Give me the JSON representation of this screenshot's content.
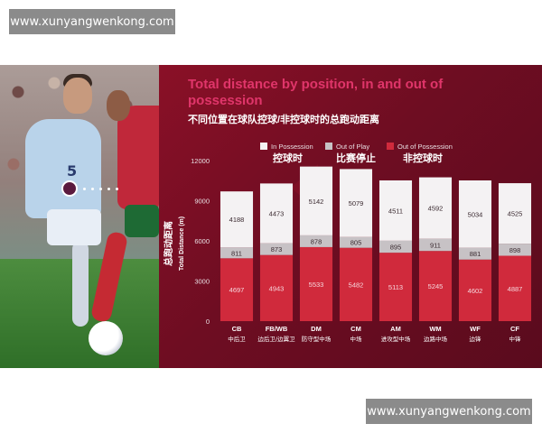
{
  "watermark_top": "www.xunyangwenkong.com",
  "watermark_bottom": "www.xunyangwenkong.com",
  "photo": {
    "jersey_number": "5"
  },
  "colors": {
    "panel_background": "#6e0d22",
    "title": "#e0356a",
    "in_possession": "#f4f2f3",
    "out_of_play": "#c7c2c5",
    "out_of_possession": "#d02a3c"
  },
  "chart_data": {
    "type": "bar",
    "stacked": true,
    "title": "Total distance by position, in and out of possession",
    "subtitle": "不同位置在球队控球/非控球时的总跑动距离",
    "ylabel_cn": "总跑动距离",
    "ylabel": "Total Distance (m)",
    "xlabel": "",
    "ylim": [
      0,
      12000
    ],
    "yticks": [
      "0",
      "3000",
      "6000",
      "9000",
      "12000"
    ],
    "categories": [
      "CB",
      "FB/WB",
      "DM",
      "CM",
      "AM",
      "WM",
      "WF",
      "CF"
    ],
    "category_labels_cn": [
      "中后卫",
      "边后卫/边翼卫",
      "防守型中场",
      "中场",
      "进攻型中场",
      "边路中场",
      "边锋",
      "中锋"
    ],
    "legend": [
      "In Possession",
      "Out of Play",
      "Out of Possession"
    ],
    "legend_annotations_cn": [
      "控球时",
      "比赛停止",
      "非控球时"
    ],
    "legend_position": "top",
    "grid": false,
    "series": [
      {
        "name": "Out of Possession",
        "values": [
          4697,
          4943,
          5533,
          5482,
          5113,
          5245,
          4602,
          4887
        ]
      },
      {
        "name": "Out of Play",
        "values": [
          811,
          873,
          878,
          805,
          895,
          911,
          881,
          898
        ]
      },
      {
        "name": "In Possession",
        "values": [
          4188,
          4473,
          5142,
          5079,
          4511,
          4592,
          5034,
          4525
        ]
      }
    ]
  }
}
